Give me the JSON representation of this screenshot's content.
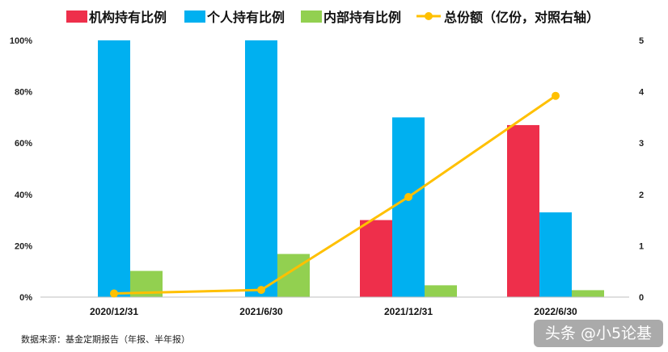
{
  "chart_data": {
    "type": "bar",
    "categories": [
      "2020/12/31",
      "2021/6/30",
      "2021/12/31",
      "2022/6/30"
    ],
    "series": [
      {
        "name": "机构持有比例",
        "type": "bar",
        "axis": "left",
        "color": "#EE2F4B",
        "values": [
          0,
          0,
          30,
          67
        ]
      },
      {
        "name": "个人持有比例",
        "type": "bar",
        "axis": "left",
        "color": "#00B0F0",
        "values": [
          100,
          100,
          70,
          33
        ]
      },
      {
        "name": "内部持有比例",
        "type": "bar",
        "axis": "left",
        "color": "#92D050",
        "values": [
          10.2,
          16.8,
          4.6,
          2.7
        ]
      },
      {
        "name": "总份额（亿份，对照右轴）",
        "type": "line",
        "axis": "right",
        "color": "#FFC000",
        "values": [
          0.07,
          0.14,
          1.95,
          3.92
        ]
      }
    ],
    "y_left": {
      "ylim": [
        0,
        100
      ],
      "ticks": [
        "0%",
        "20%",
        "40%",
        "60%",
        "80%",
        "100%"
      ]
    },
    "y_right": {
      "ylim": [
        0,
        5
      ],
      "ticks": [
        "0",
        "1",
        "2",
        "3",
        "4",
        "5"
      ]
    },
    "legend_position": "top",
    "grid": false
  },
  "source_note": "数据来源：基金定期报告（年报、半年报）",
  "watermark": "头条 @小5论基"
}
